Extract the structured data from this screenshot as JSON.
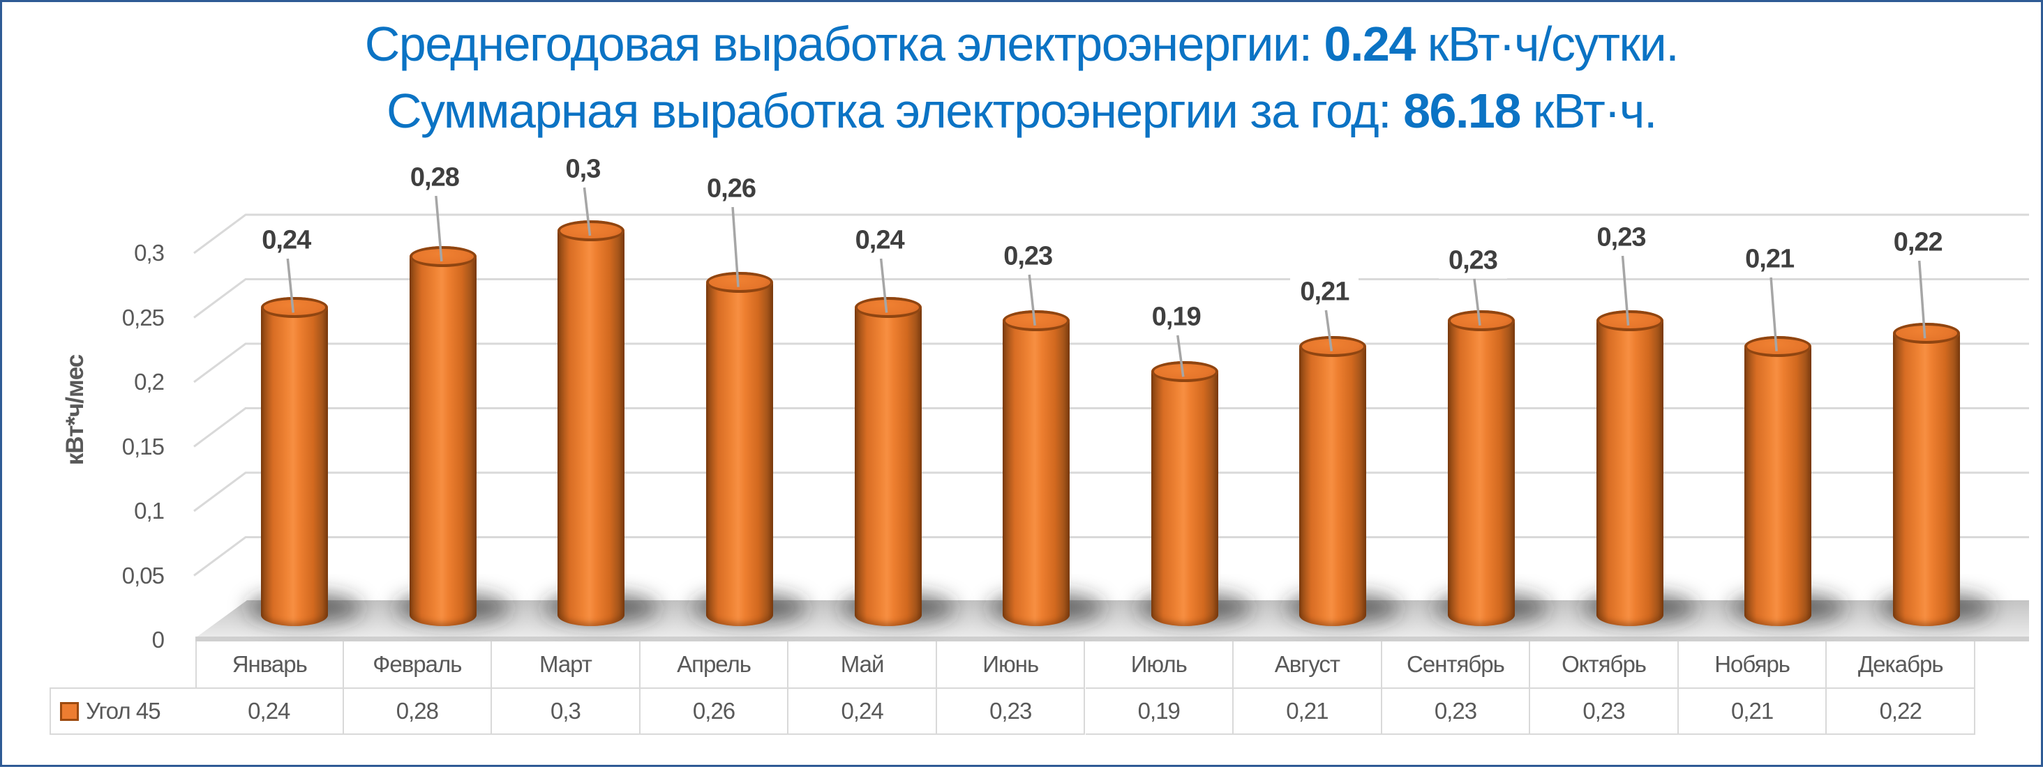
{
  "frame": {
    "border_color": "#2F5B95",
    "background": "#FFFFFF"
  },
  "title": {
    "color": "#0B73C4",
    "line1": {
      "prefix": "Среднегодовая выработка электроэнергии: ",
      "bold_value": "0.24",
      "suffix": " кВт·ч/сутки."
    },
    "line2": {
      "prefix": "Суммарная выработка электроэнергии за год: ",
      "bold_value": "86.18",
      "suffix": " кВт·ч."
    }
  },
  "chart_data": {
    "type": "bar",
    "subtype": "3d-cylinder",
    "title": "",
    "xlabel": "",
    "ylabel": "кВт*ч/мес",
    "ylim": [
      0,
      0.3
    ],
    "grid": true,
    "legend_position": "table-row-left",
    "categories": [
      "Январь",
      "Февраль",
      "Март",
      "Апрель",
      "Май",
      "Июнь",
      "Июль",
      "Август",
      "Сентябрь",
      "Октябрь",
      "Нобярь",
      "Декабрь"
    ],
    "series": [
      {
        "name": "Угол 45",
        "values": [
          0.24,
          0.28,
          0.3,
          0.26,
          0.24,
          0.23,
          0.19,
          0.21,
          0.23,
          0.23,
          0.21,
          0.22
        ]
      }
    ],
    "value_labels": [
      "0,24",
      "0,28",
      "0,3",
      "0,26",
      "0,24",
      "0,23",
      "0,19",
      "0,21",
      "0,23",
      "0,23",
      "0,21",
      "0,22"
    ],
    "ytick_labels": [
      "0",
      "0,05",
      "0,1",
      "0,15",
      "0,2",
      "0,25",
      "0,3"
    ],
    "ytick_values": [
      0,
      0.05,
      0.1,
      0.15,
      0.2,
      0.25,
      0.3
    ],
    "colors": {
      "bar": "#ED7D31",
      "bar_edge_dark": "#7A3B0E",
      "bar_top": "#E2732A",
      "bar_top_rim": "#8F4511",
      "gridline": "#D9D9D9",
      "leader_line": "#A6A6A6",
      "data_label": "#3F3F3F",
      "axis_text": "#595959"
    }
  },
  "table": {
    "legend": {
      "label": "Угол 45",
      "swatch_color": "#ED7D31",
      "swatch_border": "#9C4A10"
    }
  }
}
